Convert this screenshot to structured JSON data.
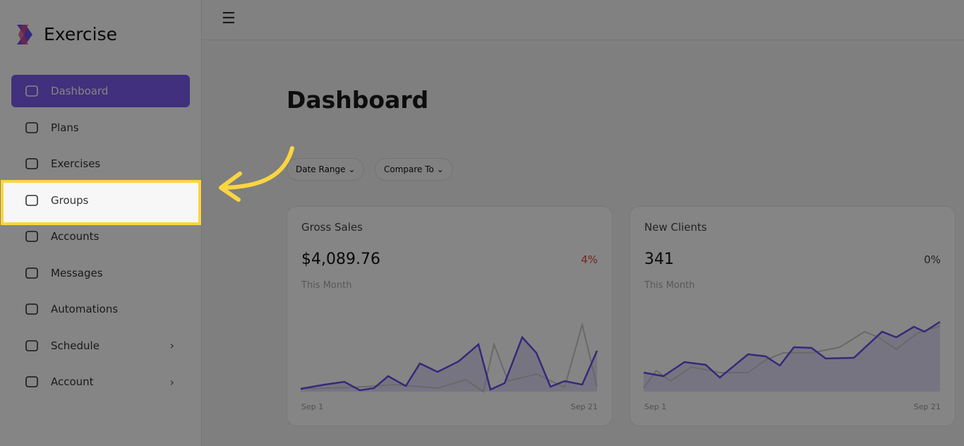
{
  "brand": {
    "name": "Exercise"
  },
  "nav": [
    {
      "label": "Dashboard"
    },
    {
      "label": "Plans"
    },
    {
      "label": "Exercises"
    },
    {
      "label": "Groups"
    },
    {
      "label": "Accounts"
    },
    {
      "label": "Messages"
    },
    {
      "label": "Automations"
    },
    {
      "label": "Schedule"
    },
    {
      "label": "Account"
    }
  ],
  "header": {
    "title": "Dashboard"
  },
  "filters": [
    "Date Range",
    "Compare To"
  ],
  "cards": [
    {
      "title": "Gross Sales",
      "value": "$4,089.76",
      "change": "4%",
      "period": "This Month",
      "start": "Sep 1",
      "end": "Sep 21"
    },
    {
      "title": "New Clients",
      "value": "341",
      "change": "0%",
      "period": "This Month",
      "start": "Sep 1",
      "end": "Sep 21"
    }
  ]
}
